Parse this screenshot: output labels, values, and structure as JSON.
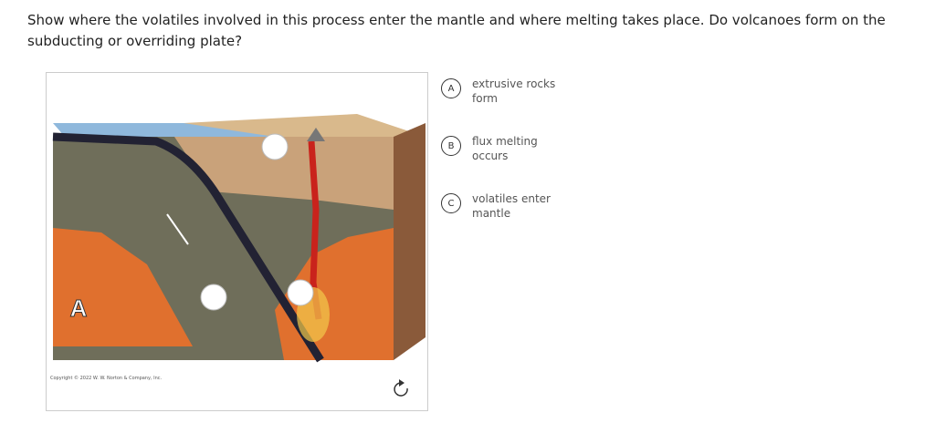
{
  "question": "Show where the volatiles involved in this process enter the mantle and where melting takes place. Do volcanoes form on the subducting or overriding plate?",
  "image": {
    "label": "A",
    "copyright": "Copyright © 2022 W. W. Norton & Company, Inc."
  },
  "options": [
    {
      "letter": "A",
      "text": "extrusive rocks form"
    },
    {
      "letter": "B",
      "text": "flux melting occurs"
    },
    {
      "letter": "C",
      "text": "volatiles enter mantle"
    }
  ]
}
